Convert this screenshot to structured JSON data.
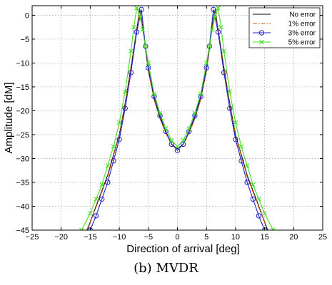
{
  "caption": "(b) MVDR",
  "chart_data": {
    "type": "line",
    "xlabel": "Direction of arrival [deg]",
    "ylabel": "Amplitude [dM]",
    "xlim": [
      -25,
      25
    ],
    "ylim": [
      -45,
      2
    ],
    "xticks": [
      -25,
      -20,
      -15,
      -10,
      -5,
      0,
      5,
      10,
      15,
      20,
      25
    ],
    "yticks": [
      0,
      -5,
      -10,
      -15,
      -20,
      -25,
      -30,
      -35,
      -40,
      -45
    ],
    "grid": true,
    "legend_position": "top-right",
    "series": [
      {
        "name": "No error",
        "color": "#000000",
        "style": "solid",
        "marker": "none",
        "x": [
          -15.5,
          -14,
          -12,
          -10,
          -9,
          -8,
          -7,
          -6.5,
          -6,
          -5.5,
          -5,
          -4,
          -3,
          -2,
          -1,
          0,
          1,
          2,
          3,
          4,
          5,
          5.5,
          6,
          6.5,
          7,
          8,
          9,
          10,
          12,
          14,
          15.5
        ],
        "y": [
          -45,
          -40,
          -33.5,
          -25,
          -18.5,
          -11,
          -3,
          1.2,
          -2,
          -7,
          -11.5,
          -17.5,
          -21.5,
          -24.5,
          -27,
          -28,
          -27,
          -24.5,
          -21.5,
          -17.5,
          -11.5,
          -7,
          -2,
          1.2,
          -3,
          -11,
          -18.5,
          -25,
          -33.5,
          -40,
          -45
        ]
      },
      {
        "name": "1% error",
        "color": "#cc5500",
        "style": "dashdot",
        "marker": "none",
        "x": [
          -15.6,
          -14,
          -12,
          -10,
          -9,
          -8,
          -7,
          -6.5,
          -6,
          -5.5,
          -5,
          -4,
          -3,
          -2,
          -1,
          0,
          1,
          2,
          3,
          4,
          5,
          5.5,
          6,
          6.5,
          7,
          8,
          9,
          10,
          12,
          14,
          15.6
        ],
        "y": [
          -45,
          -40.2,
          -33.8,
          -25.2,
          -18.7,
          -11.2,
          -3.2,
          1.1,
          -2.2,
          -7.2,
          -11.7,
          -17.7,
          -21.7,
          -24.7,
          -27.1,
          -28.1,
          -27.1,
          -24.7,
          -21.7,
          -17.7,
          -11.7,
          -7.2,
          -2.2,
          1.1,
          -3.2,
          -11.2,
          -18.7,
          -25.2,
          -33.8,
          -40.2,
          -45
        ]
      },
      {
        "name": "3% error",
        "color": "#2222cc",
        "style": "solid",
        "marker": "circle",
        "x": [
          -15,
          -14,
          -13,
          -12,
          -11,
          -10,
          -9,
          -8,
          -7,
          -6.2,
          -5.5,
          -5,
          -4,
          -3,
          -2,
          -1,
          0,
          1,
          2,
          3,
          4,
          5,
          5.5,
          6.2,
          7,
          8,
          9,
          10,
          11,
          12,
          13,
          14,
          15
        ],
        "y": [
          -45,
          -42,
          -38.5,
          -35,
          -30.5,
          -26,
          -19.5,
          -12,
          -3.5,
          1.2,
          -6.5,
          -11,
          -17,
          -21,
          -24.3,
          -27,
          -28.3,
          -27,
          -24.3,
          -21,
          -17,
          -11,
          -6.5,
          1.2,
          -3.5,
          -12,
          -19.5,
          -26,
          -30.5,
          -35,
          -38.5,
          -42,
          -45
        ]
      },
      {
        "name": "5% error",
        "color": "#44dd22",
        "style": "solid",
        "marker": "x",
        "x": [
          -16.5,
          -15,
          -14,
          -13,
          -12,
          -11,
          -10,
          -9,
          -8,
          -7.5,
          -7,
          -6.5,
          -6,
          -5.5,
          -5,
          -4,
          -3,
          -2,
          -1,
          0,
          1,
          2,
          3,
          4,
          5,
          5.5,
          6,
          6.5,
          7,
          7.5,
          8,
          9,
          10,
          11,
          12,
          13,
          14,
          15,
          16.5
        ],
        "y": [
          -45,
          -41.5,
          -38.5,
          -35.5,
          -31.5,
          -27.5,
          -22.5,
          -16,
          -7.5,
          -2.5,
          1.5,
          0,
          -3,
          -6.5,
          -10,
          -16.5,
          -20.5,
          -23.7,
          -26.2,
          -27.5,
          -26.2,
          -23.7,
          -20.5,
          -16.5,
          -10,
          -6.5,
          -3,
          0,
          1.5,
          -2.5,
          -7.5,
          -16,
          -22.5,
          -27.5,
          -31.5,
          -35.5,
          -38.5,
          -41.5,
          -45
        ]
      }
    ]
  }
}
